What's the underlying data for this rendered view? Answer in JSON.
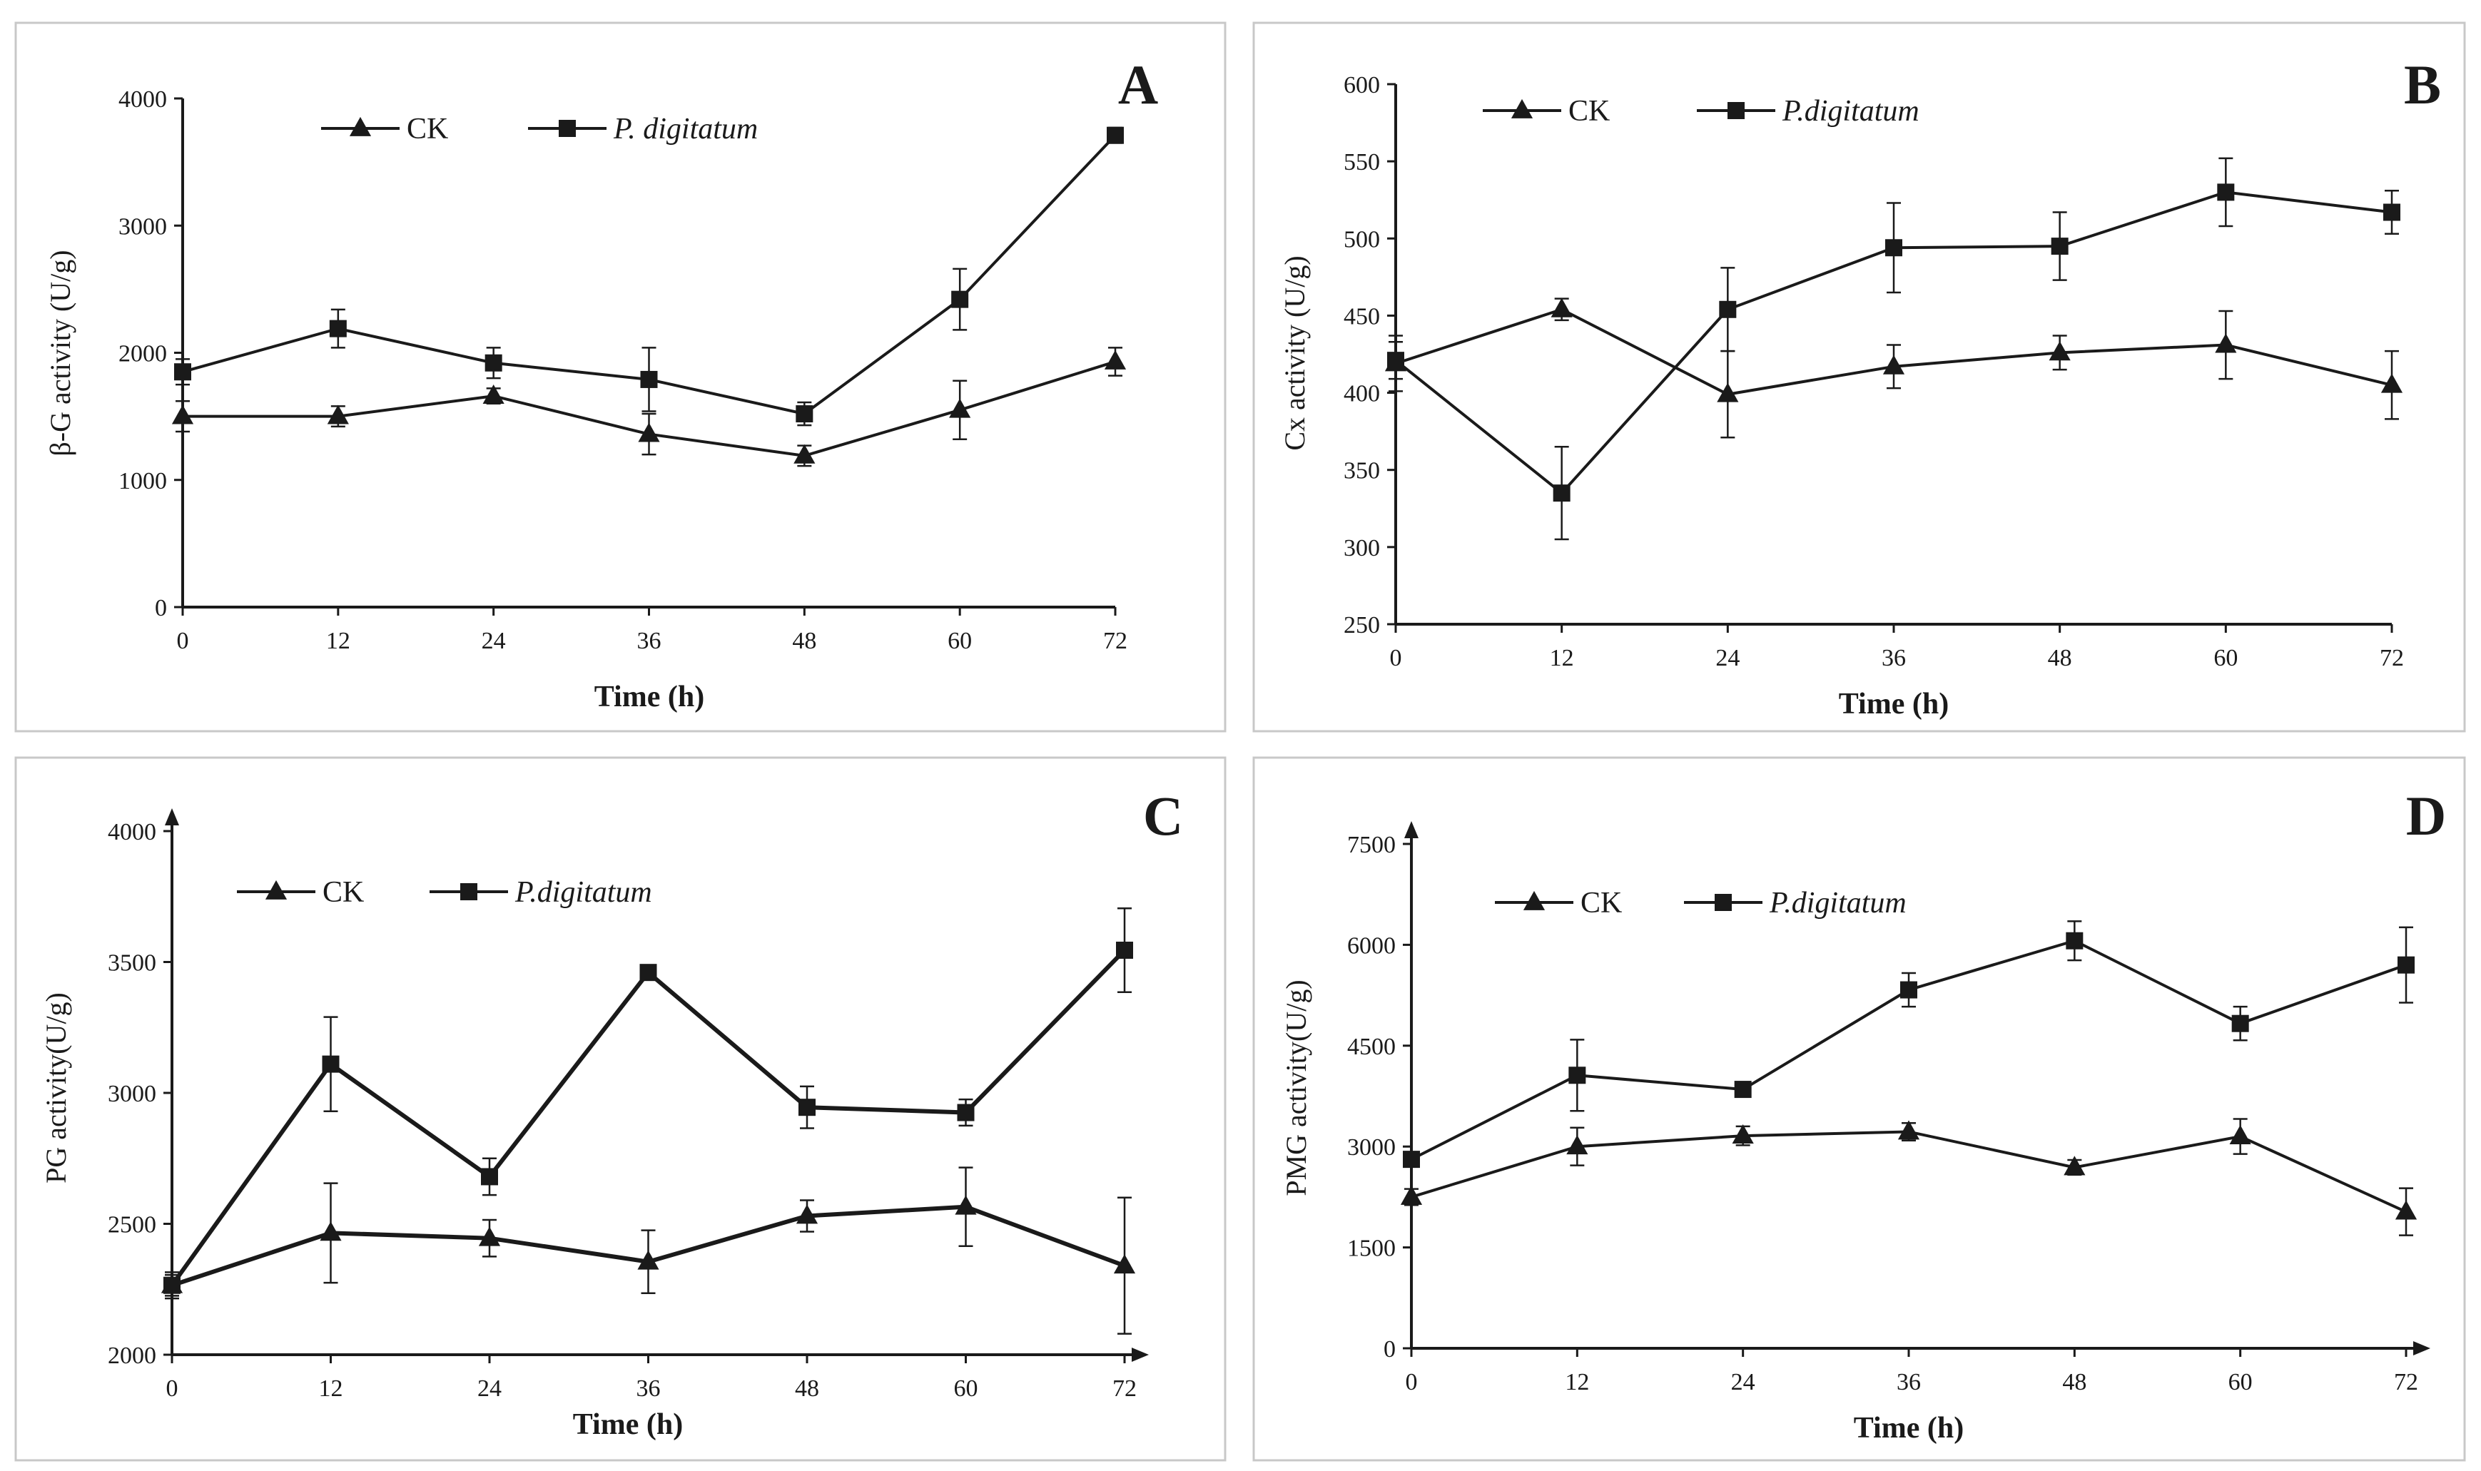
{
  "chart_data": [
    {
      "type": "line",
      "panel": "A",
      "title": "",
      "xlabel": "Time (h)",
      "ylabel": "β-G activity (U/g)",
      "x": [
        0,
        12,
        24,
        36,
        48,
        60,
        72
      ],
      "x_ticks": [
        "0",
        "12",
        "24",
        "36",
        "48",
        "60",
        "72"
      ],
      "xlim": [
        0,
        72
      ],
      "ylim": [
        0,
        4000
      ],
      "y_ticks": [
        "0",
        "1000",
        "2000",
        "3000",
        "4000"
      ],
      "grid": false,
      "legend_position": "top-center",
      "series": [
        {
          "name": "CK",
          "marker": "triangle",
          "values": [
            1500,
            1500,
            1660,
            1360,
            1190,
            1550,
            1930
          ],
          "errors": [
            120,
            80,
            60,
            160,
            80,
            230,
            110
          ]
        },
        {
          "name": "P. digitatum",
          "marker": "square",
          "values": [
            1850,
            2190,
            1920,
            1790,
            1520,
            2420,
            3710
          ],
          "errors": [
            100,
            150,
            120,
            250,
            90,
            240,
            60
          ]
        }
      ]
    },
    {
      "type": "line",
      "panel": "B",
      "title": "",
      "xlabel": "Time (h)",
      "ylabel": "Cx activity (U/g)",
      "x": [
        0,
        12,
        24,
        36,
        48,
        60,
        72
      ],
      "x_ticks": [
        "0",
        "12",
        "24",
        "36",
        "48",
        "60",
        "72"
      ],
      "xlim": [
        0,
        72
      ],
      "ylim": [
        250,
        600
      ],
      "y_ticks": [
        "250",
        "300",
        "350",
        "400",
        "450",
        "500",
        "550",
        "600"
      ],
      "grid": false,
      "legend_position": "top-left",
      "series": [
        {
          "name": "CK",
          "marker": "triangle",
          "values": [
            419,
            454,
            399,
            417,
            426,
            431,
            405
          ],
          "errors": [
            18,
            7,
            28,
            14,
            11,
            22,
            22
          ]
        },
        {
          "name": "P.digitatum",
          "marker": "square",
          "values": [
            421,
            335,
            454,
            494,
            495,
            530,
            517
          ],
          "errors": [
            12,
            30,
            27,
            29,
            22,
            22,
            14
          ]
        }
      ]
    },
    {
      "type": "line",
      "panel": "C",
      "title": "",
      "xlabel": "Time (h)",
      "ylabel": "PG activity(U/g)",
      "x": [
        0,
        12,
        24,
        36,
        48,
        60,
        72
      ],
      "x_ticks": [
        "0",
        "12",
        "24",
        "36",
        "48",
        "60",
        "72"
      ],
      "xlim": [
        0,
        72
      ],
      "ylim": [
        2000,
        4000
      ],
      "y_ticks": [
        "2000",
        "2500",
        "3000",
        "3500",
        "4000"
      ],
      "grid": false,
      "legend_position": "top-left",
      "series": [
        {
          "name": "CK",
          "marker": "triangle",
          "values": [
            2265,
            2465,
            2445,
            2355,
            2530,
            2565,
            2340
          ],
          "errors": [
            50,
            190,
            70,
            120,
            60,
            150,
            260
          ]
        },
        {
          "name": "P.digitatum",
          "marker": "square",
          "values": [
            2265,
            3110,
            2680,
            3460,
            2945,
            2925,
            3545
          ],
          "errors": [
            40,
            180,
            70,
            20,
            80,
            50,
            160
          ]
        }
      ]
    },
    {
      "type": "line",
      "panel": "D",
      "title": "",
      "xlabel": "Time (h)",
      "ylabel": "PMG activity(U/g)",
      "x": [
        0,
        12,
        24,
        36,
        48,
        60,
        72
      ],
      "x_ticks": [
        "0",
        "12",
        "24",
        "36",
        "48",
        "60",
        "72"
      ],
      "xlim": [
        0,
        72
      ],
      "ylim": [
        0,
        7500
      ],
      "y_ticks": [
        "0",
        "1500",
        "3000",
        "4500",
        "6000",
        "7500"
      ],
      "grid": false,
      "legend_position": "top-left",
      "series": [
        {
          "name": "CK",
          "marker": "triangle",
          "values": [
            2250,
            3000,
            3160,
            3220,
            2690,
            3150,
            2030
          ],
          "errors": [
            120,
            280,
            140,
            130,
            110,
            260,
            350
          ]
        },
        {
          "name": "P.digitatum",
          "marker": "square",
          "values": [
            2810,
            4060,
            3850,
            5330,
            6060,
            4830,
            5700
          ],
          "errors": [
            100,
            530,
            90,
            250,
            290,
            250,
            560
          ]
        }
      ]
    }
  ]
}
